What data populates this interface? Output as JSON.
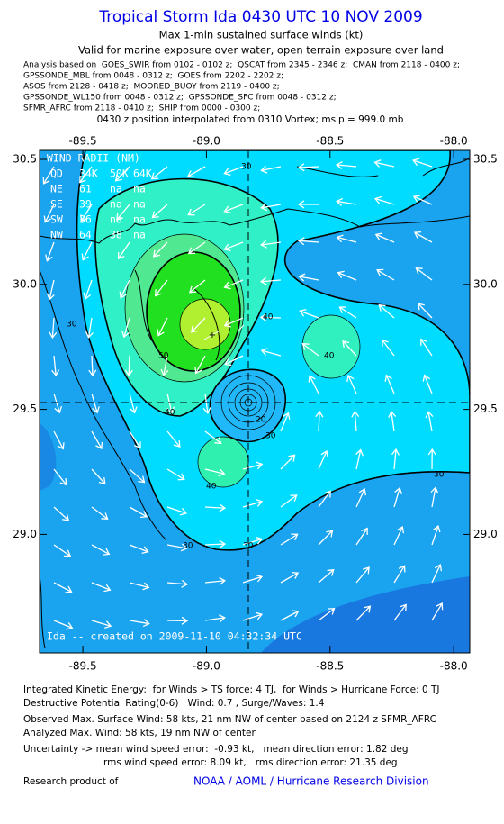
{
  "header": {
    "title": "Tropical Storm Ida 0430 UTC 10 NOV 2009",
    "subtitle": "Max 1-min sustained surface winds (kt)",
    "validity": "Valid for marine exposure over water, open terrain exposure over land",
    "analysis": [
      "Analysis based on  GOES_SWIR from 0102 - 0102 z;  QSCAT from 2345 - 2346 z;  CMAN from 2118 - 0400 z;",
      "GPSSONDE_MBL from 0048 - 0312 z;  GOES from 2202 - 2202 z;",
      "ASOS from 2128 - 0418 z;  MOORED_BUOY from 2119 - 0400 z;",
      "GPSSONDE_WL150 from 0048 - 0312 z;  GPSSONDE_SFC from 0048 - 0312 z;",
      "SFMR_AFRC from 2118 - 0410 z;  SHIP from 0000 - 0300 z;"
    ],
    "position_note": "0430 z position interpolated from 0310 Vortex; mslp = 999.0 mb"
  },
  "map": {
    "xlim": [
      -89.675,
      -87.935
    ],
    "ylim": [
      28.526,
      30.536
    ],
    "xticks": [
      -89.5,
      {
        "value": -89,
        "label": "-89.0"
      },
      -88.5,
      {
        "value": -88,
        "label": "-88.0"
      }
    ],
    "yticks": [
      30.5,
      {
        "value": 30,
        "label": "30.0"
      },
      29.5,
      {
        "value": 29,
        "label": "29.0"
      }
    ],
    "contour_labels": [
      30,
      40,
      50,
      40,
      40,
      40,
      30,
      20,
      30,
      30,
      30,
      30
    ],
    "wind_radii": {
      "title": "WIND RADII (NM)",
      "header": [
        "QD",
        "34K",
        "50K",
        "64K"
      ],
      "rows": [
        [
          "NE",
          61,
          "na",
          "na"
        ],
        [
          "SE",
          39,
          "na",
          "na"
        ],
        [
          "SW",
          36,
          "na",
          "na"
        ],
        [
          "NW",
          64,
          38,
          "na"
        ]
      ]
    },
    "credit": "Ida -- created on 2009-11-10 04:32:34 UTC"
  },
  "footer": {
    "lines": [
      "Integrated Kinetic Energy:  for Winds > TS force: 4 TJ,  for Winds > Hurricane Force: 0 TJ",
      "Destructive Potential Rating(0-6)   Wind: 0.7 , Surge/Waves: 1.4",
      "Observed Max. Surface Wind: 58 kts, 21 nm NW of center based on 2124 z SFMR_AFRC",
      "Analyzed Max. Wind: 58 kts, 19 nm NW of center",
      "Uncertainty -> mean wind speed error:  -0.93 kt,   mean direction error: 1.82 deg",
      "rms wind speed error: 8.09 kt,   rms direction error: 21.35 deg"
    ],
    "credit_label": "Research product of",
    "credit_org": "NOAA / AOML / Hurricane Research Division"
  }
}
